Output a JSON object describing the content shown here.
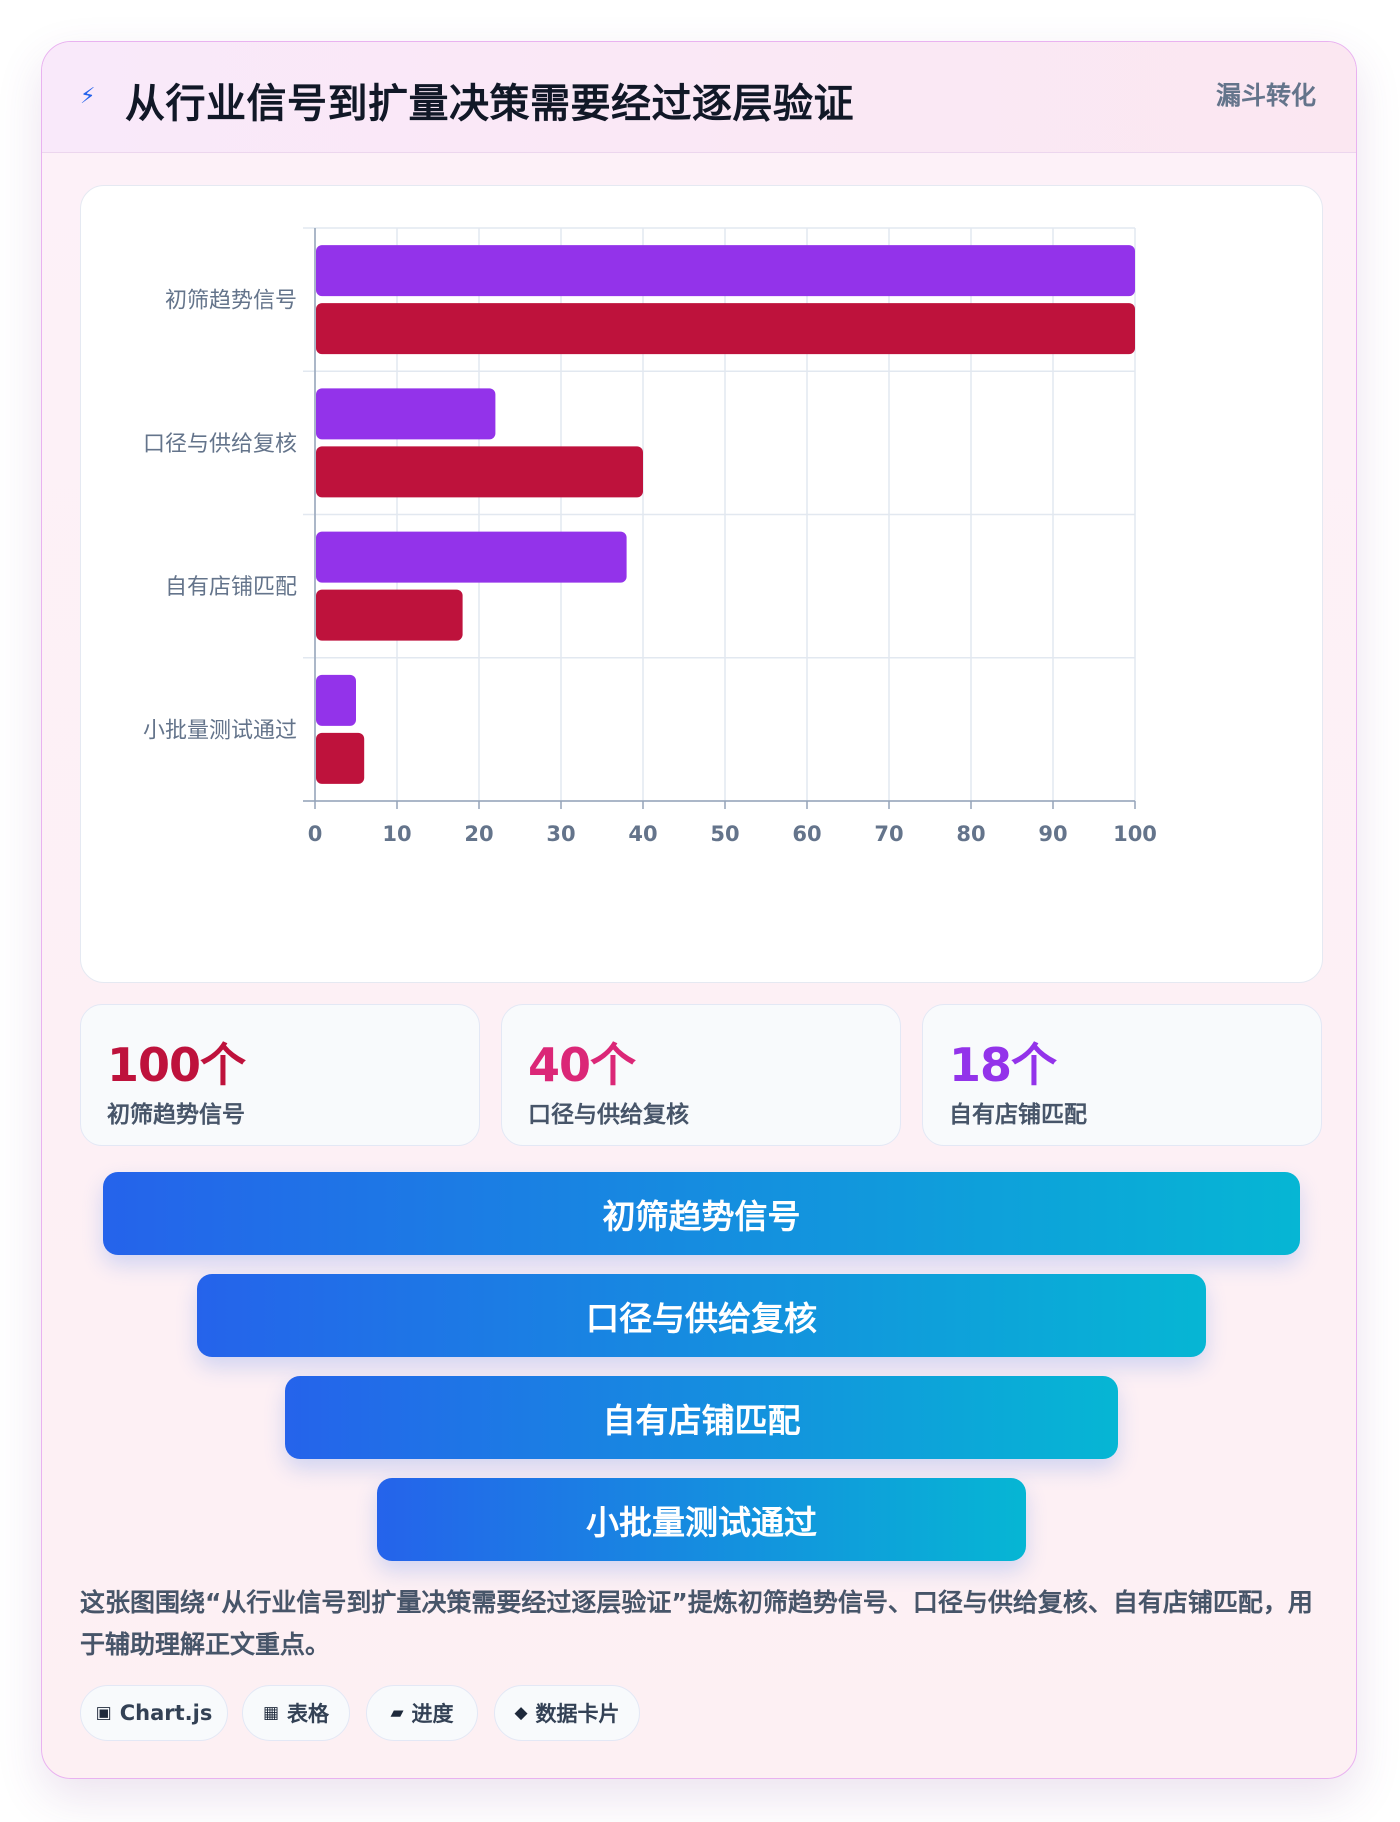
{
  "header": {
    "icon": "bolt-icon",
    "title": "从行业信号到扩量决策需要经过逐层验证",
    "tag": "漏斗转化"
  },
  "chart_data": {
    "type": "bar",
    "orientation": "horizontal",
    "categories": [
      "初筛趋势信号",
      "口径与供给复核",
      "自有店铺匹配",
      "小批量测试通过"
    ],
    "series": [
      {
        "color": "#9333ea",
        "values": [
          100,
          22,
          38,
          5
        ]
      },
      {
        "color": "#be123c",
        "values": [
          100,
          40,
          18,
          6
        ]
      }
    ],
    "xlim": [
      0,
      100
    ],
    "xticks": [
      0,
      10,
      20,
      30,
      40,
      50,
      60,
      70,
      80,
      90,
      100
    ],
    "grid": true
  },
  "stats": [
    {
      "value": "100个",
      "label": "初筛趋势信号",
      "color": "#be123c"
    },
    {
      "value": "40个",
      "label": "口径与供给复核",
      "color": "#db2777"
    },
    {
      "value": "18个",
      "label": "自有店铺匹配",
      "color": "#9333ea"
    }
  ],
  "funnel": [
    "初筛趋势信号",
    "口径与供给复核",
    "自有店铺匹配",
    "小批量测试通过"
  ],
  "summary": "这张图围绕“从行业信号到扩量决策需要经过逐层验证”提炼初筛趋势信号、口径与供给复核、自有店铺匹配，用于辅助理解正文重点。",
  "chips": [
    {
      "icon": "chip-square-icon",
      "glyph": "▣",
      "label": "Chart.js"
    },
    {
      "icon": "table-grid-icon",
      "glyph": "▦",
      "label": "表格"
    },
    {
      "icon": "progress-bar-icon",
      "glyph": "▰",
      "label": "进度"
    },
    {
      "icon": "diamond-icon",
      "glyph": "◆",
      "label": "数据卡片"
    }
  ]
}
